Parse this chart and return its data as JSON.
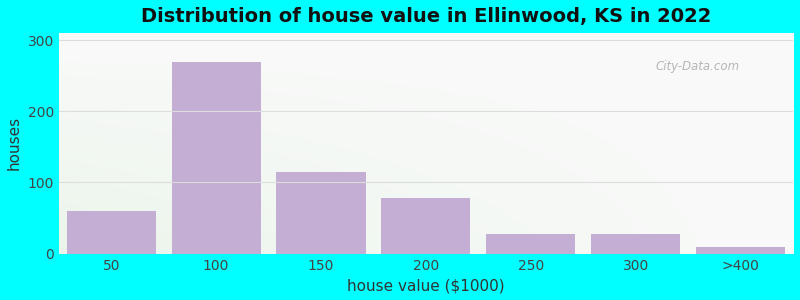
{
  "title": "Distribution of house value in Ellinwood, KS in 2022",
  "xlabel": "house value ($1000)",
  "ylabel": "houses",
  "bar_labels": [
    "50",
    "100",
    "150",
    "200",
    "250",
    "300",
    ">400"
  ],
  "bar_values": [
    60,
    270,
    115,
    78,
    28,
    28,
    10
  ],
  "bar_color": "#c4aed4",
  "bar_edgecolor": "#c4aed4",
  "bar_positions": [
    0,
    1,
    2,
    3,
    4,
    5,
    6
  ],
  "bar_width": 0.85,
  "ylim": [
    0,
    310
  ],
  "yticks": [
    0,
    100,
    200,
    300
  ],
  "background_outer": "#00ffff",
  "title_fontsize": 14,
  "label_fontsize": 11,
  "tick_fontsize": 10,
  "watermark_text": "City-Data.com",
  "grid_color": "#dddddd",
  "grid_linewidth": 0.8
}
